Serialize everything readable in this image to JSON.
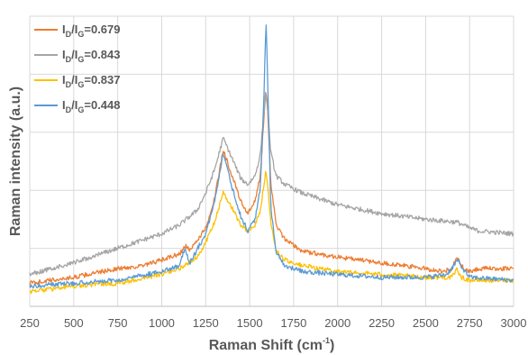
{
  "chart_data": {
    "type": "line",
    "xlabel": "Raman Shift (cm",
    "xlabel_sup": "-1",
    "xlabel_end": ")",
    "ylabel": "Raman intensity (a.u.)",
    "xlim": [
      250,
      3000
    ],
    "xticks": [
      250,
      500,
      750,
      1000,
      1250,
      1500,
      1750,
      2000,
      2250,
      2500,
      2750,
      3000
    ],
    "ylim": [
      0,
      1
    ],
    "ygrid_count": 5,
    "grid": true,
    "legend_position": "top-left",
    "series": [
      {
        "name": "I_D/I_G=0.679",
        "legend_parts": [
          "I",
          "D",
          "/I",
          "G",
          "=0.679"
        ],
        "color": "#ED7D31",
        "points": [
          [
            250,
            0.08
          ],
          [
            500,
            0.1
          ],
          [
            750,
            0.13
          ],
          [
            900,
            0.14
          ],
          [
            1000,
            0.16
          ],
          [
            1100,
            0.18
          ],
          [
            1140,
            0.21
          ],
          [
            1160,
            0.19
          ],
          [
            1250,
            0.27
          ],
          [
            1300,
            0.37
          ],
          [
            1350,
            0.54
          ],
          [
            1400,
            0.45
          ],
          [
            1450,
            0.36
          ],
          [
            1490,
            0.32
          ],
          [
            1530,
            0.36
          ],
          [
            1560,
            0.45
          ],
          [
            1590,
            0.74
          ],
          [
            1600,
            0.7
          ],
          [
            1620,
            0.43
          ],
          [
            1650,
            0.28
          ],
          [
            1700,
            0.23
          ],
          [
            1800,
            0.19
          ],
          [
            2000,
            0.17
          ],
          [
            2250,
            0.15
          ],
          [
            2500,
            0.13
          ],
          [
            2600,
            0.12
          ],
          [
            2650,
            0.13
          ],
          [
            2680,
            0.17
          ],
          [
            2700,
            0.14
          ],
          [
            2750,
            0.12
          ],
          [
            2800,
            0.13
          ],
          [
            3000,
            0.13
          ]
        ]
      },
      {
        "name": "I_D/I_G=0.843",
        "legend_parts": [
          "I",
          "D",
          "/I",
          "G",
          "=0.843"
        ],
        "color": "#A5A5A5",
        "points": [
          [
            250,
            0.11
          ],
          [
            500,
            0.15
          ],
          [
            750,
            0.2
          ],
          [
            900,
            0.23
          ],
          [
            1000,
            0.25
          ],
          [
            1100,
            0.28
          ],
          [
            1200,
            0.33
          ],
          [
            1250,
            0.39
          ],
          [
            1300,
            0.47
          ],
          [
            1350,
            0.58
          ],
          [
            1400,
            0.51
          ],
          [
            1450,
            0.44
          ],
          [
            1490,
            0.42
          ],
          [
            1530,
            0.45
          ],
          [
            1560,
            0.52
          ],
          [
            1590,
            0.73
          ],
          [
            1600,
            0.7
          ],
          [
            1620,
            0.53
          ],
          [
            1650,
            0.45
          ],
          [
            1700,
            0.42
          ],
          [
            1800,
            0.39
          ],
          [
            2000,
            0.35
          ],
          [
            2250,
            0.32
          ],
          [
            2500,
            0.3
          ],
          [
            2680,
            0.29
          ],
          [
            2750,
            0.27
          ],
          [
            2800,
            0.26
          ],
          [
            3000,
            0.25
          ]
        ]
      },
      {
        "name": "I_D/I_G=0.837",
        "legend_parts": [
          "I",
          "D",
          "/I",
          "G",
          "=0.837"
        ],
        "color": "#FFC000",
        "points": [
          [
            250,
            0.05
          ],
          [
            500,
            0.07
          ],
          [
            750,
            0.08
          ],
          [
            1000,
            0.11
          ],
          [
            1100,
            0.13
          ],
          [
            1200,
            0.17
          ],
          [
            1250,
            0.22
          ],
          [
            1300,
            0.29
          ],
          [
            1350,
            0.39
          ],
          [
            1400,
            0.34
          ],
          [
            1450,
            0.28
          ],
          [
            1490,
            0.26
          ],
          [
            1530,
            0.28
          ],
          [
            1560,
            0.33
          ],
          [
            1590,
            0.46
          ],
          [
            1600,
            0.44
          ],
          [
            1620,
            0.29
          ],
          [
            1650,
            0.19
          ],
          [
            1700,
            0.16
          ],
          [
            1800,
            0.14
          ],
          [
            2000,
            0.12
          ],
          [
            2250,
            0.11
          ],
          [
            2500,
            0.1
          ],
          [
            2650,
            0.1
          ],
          [
            2680,
            0.13
          ],
          [
            2700,
            0.1
          ],
          [
            2750,
            0.09
          ],
          [
            3000,
            0.09
          ]
        ]
      },
      {
        "name": "I_D/I_G=0.448",
        "legend_parts": [
          "I",
          "D",
          "/I",
          "G",
          "=0.448"
        ],
        "color": "#5B9BD5",
        "points": [
          [
            250,
            0.07
          ],
          [
            500,
            0.08
          ],
          [
            750,
            0.09
          ],
          [
            1000,
            0.12
          ],
          [
            1100,
            0.14
          ],
          [
            1130,
            0.2
          ],
          [
            1160,
            0.15
          ],
          [
            1250,
            0.25
          ],
          [
            1300,
            0.36
          ],
          [
            1350,
            0.53
          ],
          [
            1400,
            0.41
          ],
          [
            1450,
            0.31
          ],
          [
            1490,
            0.26
          ],
          [
            1530,
            0.3
          ],
          [
            1560,
            0.4
          ],
          [
            1580,
            0.7
          ],
          [
            1593,
            1.0
          ],
          [
            1605,
            0.72
          ],
          [
            1620,
            0.34
          ],
          [
            1650,
            0.19
          ],
          [
            1700,
            0.14
          ],
          [
            1800,
            0.12
          ],
          [
            2000,
            0.11
          ],
          [
            2250,
            0.1
          ],
          [
            2500,
            0.1
          ],
          [
            2620,
            0.11
          ],
          [
            2660,
            0.14
          ],
          [
            2680,
            0.16
          ],
          [
            2700,
            0.14
          ],
          [
            2750,
            0.1
          ],
          [
            3000,
            0.09
          ]
        ]
      }
    ]
  }
}
